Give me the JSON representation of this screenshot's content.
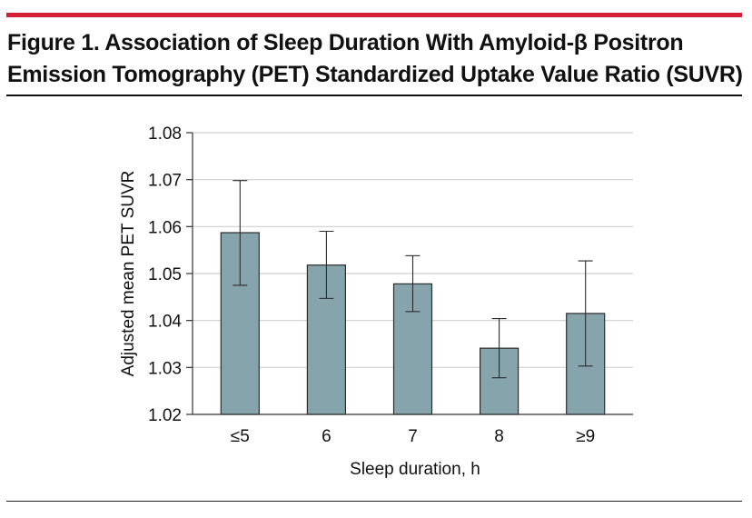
{
  "figure": {
    "title_line1": "Figure 1. Association of Sleep Duration With Amyloid-β Positron",
    "title_line2": "Emission Tomography (PET) Standardized Uptake Value Ratio (SUVR)"
  },
  "colors": {
    "accent_rule": "#d41f36",
    "bar_fill": "#86a4ab",
    "bar_stroke": "#2b2b2b",
    "grid": "#d0d0d0",
    "axis": "#333333"
  },
  "chart_data": {
    "type": "bar",
    "title": "Association of Sleep Duration With Amyloid-β Positron Emission Tomography (PET) Standardized Uptake Value Ratio (SUVR)",
    "xlabel": "Sleep duration, h",
    "ylabel": "Adjusted mean PET SUVR",
    "categories": [
      "≤5",
      "6",
      "7",
      "8",
      "≥9"
    ],
    "values": [
      1.0587,
      1.0518,
      1.0478,
      1.0341,
      1.0415
    ],
    "error_low": [
      1.0475,
      1.0447,
      1.0419,
      1.0278,
      1.0303
    ],
    "error_high": [
      1.0698,
      1.059,
      1.0538,
      1.0404,
      1.0527
    ],
    "ylim": [
      1.02,
      1.08
    ],
    "yticks": [
      1.02,
      1.03,
      1.04,
      1.05,
      1.06,
      1.07,
      1.08
    ],
    "ytick_labels": [
      "1.02",
      "1.03",
      "1.04",
      "1.05",
      "1.06",
      "1.07",
      "1.08"
    ],
    "grid": true,
    "legend": "none"
  }
}
